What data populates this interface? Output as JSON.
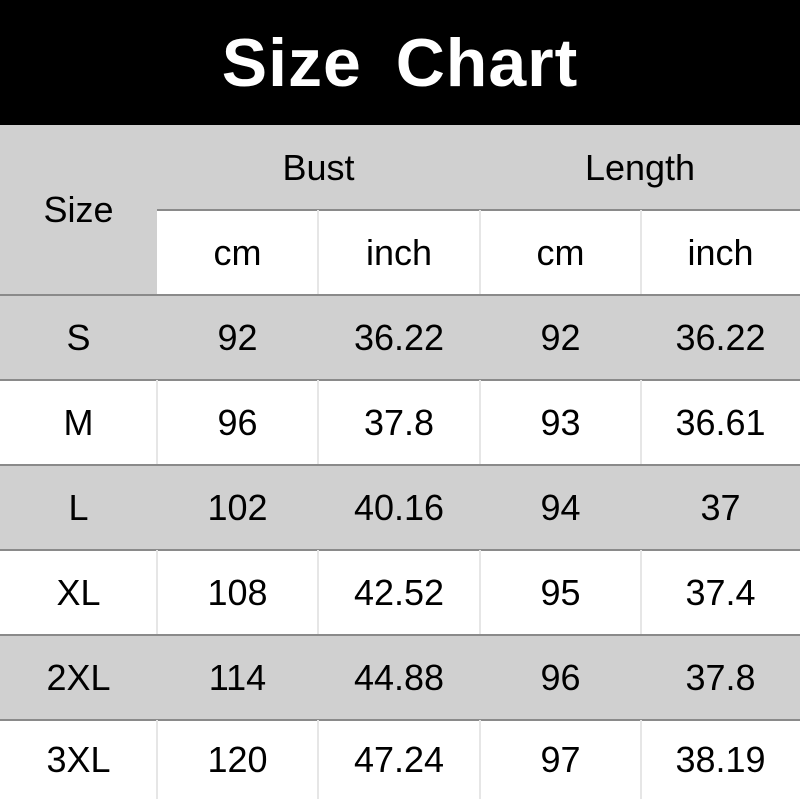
{
  "title": "Size Chart",
  "header": {
    "size": "Size",
    "groups": [
      "Bust",
      "Length"
    ],
    "units": [
      "cm",
      "inch",
      "cm",
      "inch"
    ]
  },
  "rows": [
    {
      "size": "S",
      "bust_cm": "92",
      "bust_inch": "36.22",
      "length_cm": "92",
      "length_inch": "36.22"
    },
    {
      "size": "M",
      "bust_cm": "96",
      "bust_inch": "37.8",
      "length_cm": "93",
      "length_inch": "36.61"
    },
    {
      "size": "L",
      "bust_cm": "102",
      "bust_inch": "40.16",
      "length_cm": "94",
      "length_inch": "37"
    },
    {
      "size": "XL",
      "bust_cm": "108",
      "bust_inch": "42.52",
      "length_cm": "95",
      "length_inch": "37.4"
    },
    {
      "size": "2XL",
      "bust_cm": "114",
      "bust_inch": "44.88",
      "length_cm": "96",
      "length_inch": "37.8"
    },
    {
      "size": "3XL",
      "bust_cm": "120",
      "bust_inch": "47.24",
      "length_cm": "97",
      "length_inch": "38.19"
    }
  ],
  "colors": {
    "header_bg": "#000000",
    "shaded_row": "#d0d0d0",
    "plain_row": "#ffffff"
  }
}
